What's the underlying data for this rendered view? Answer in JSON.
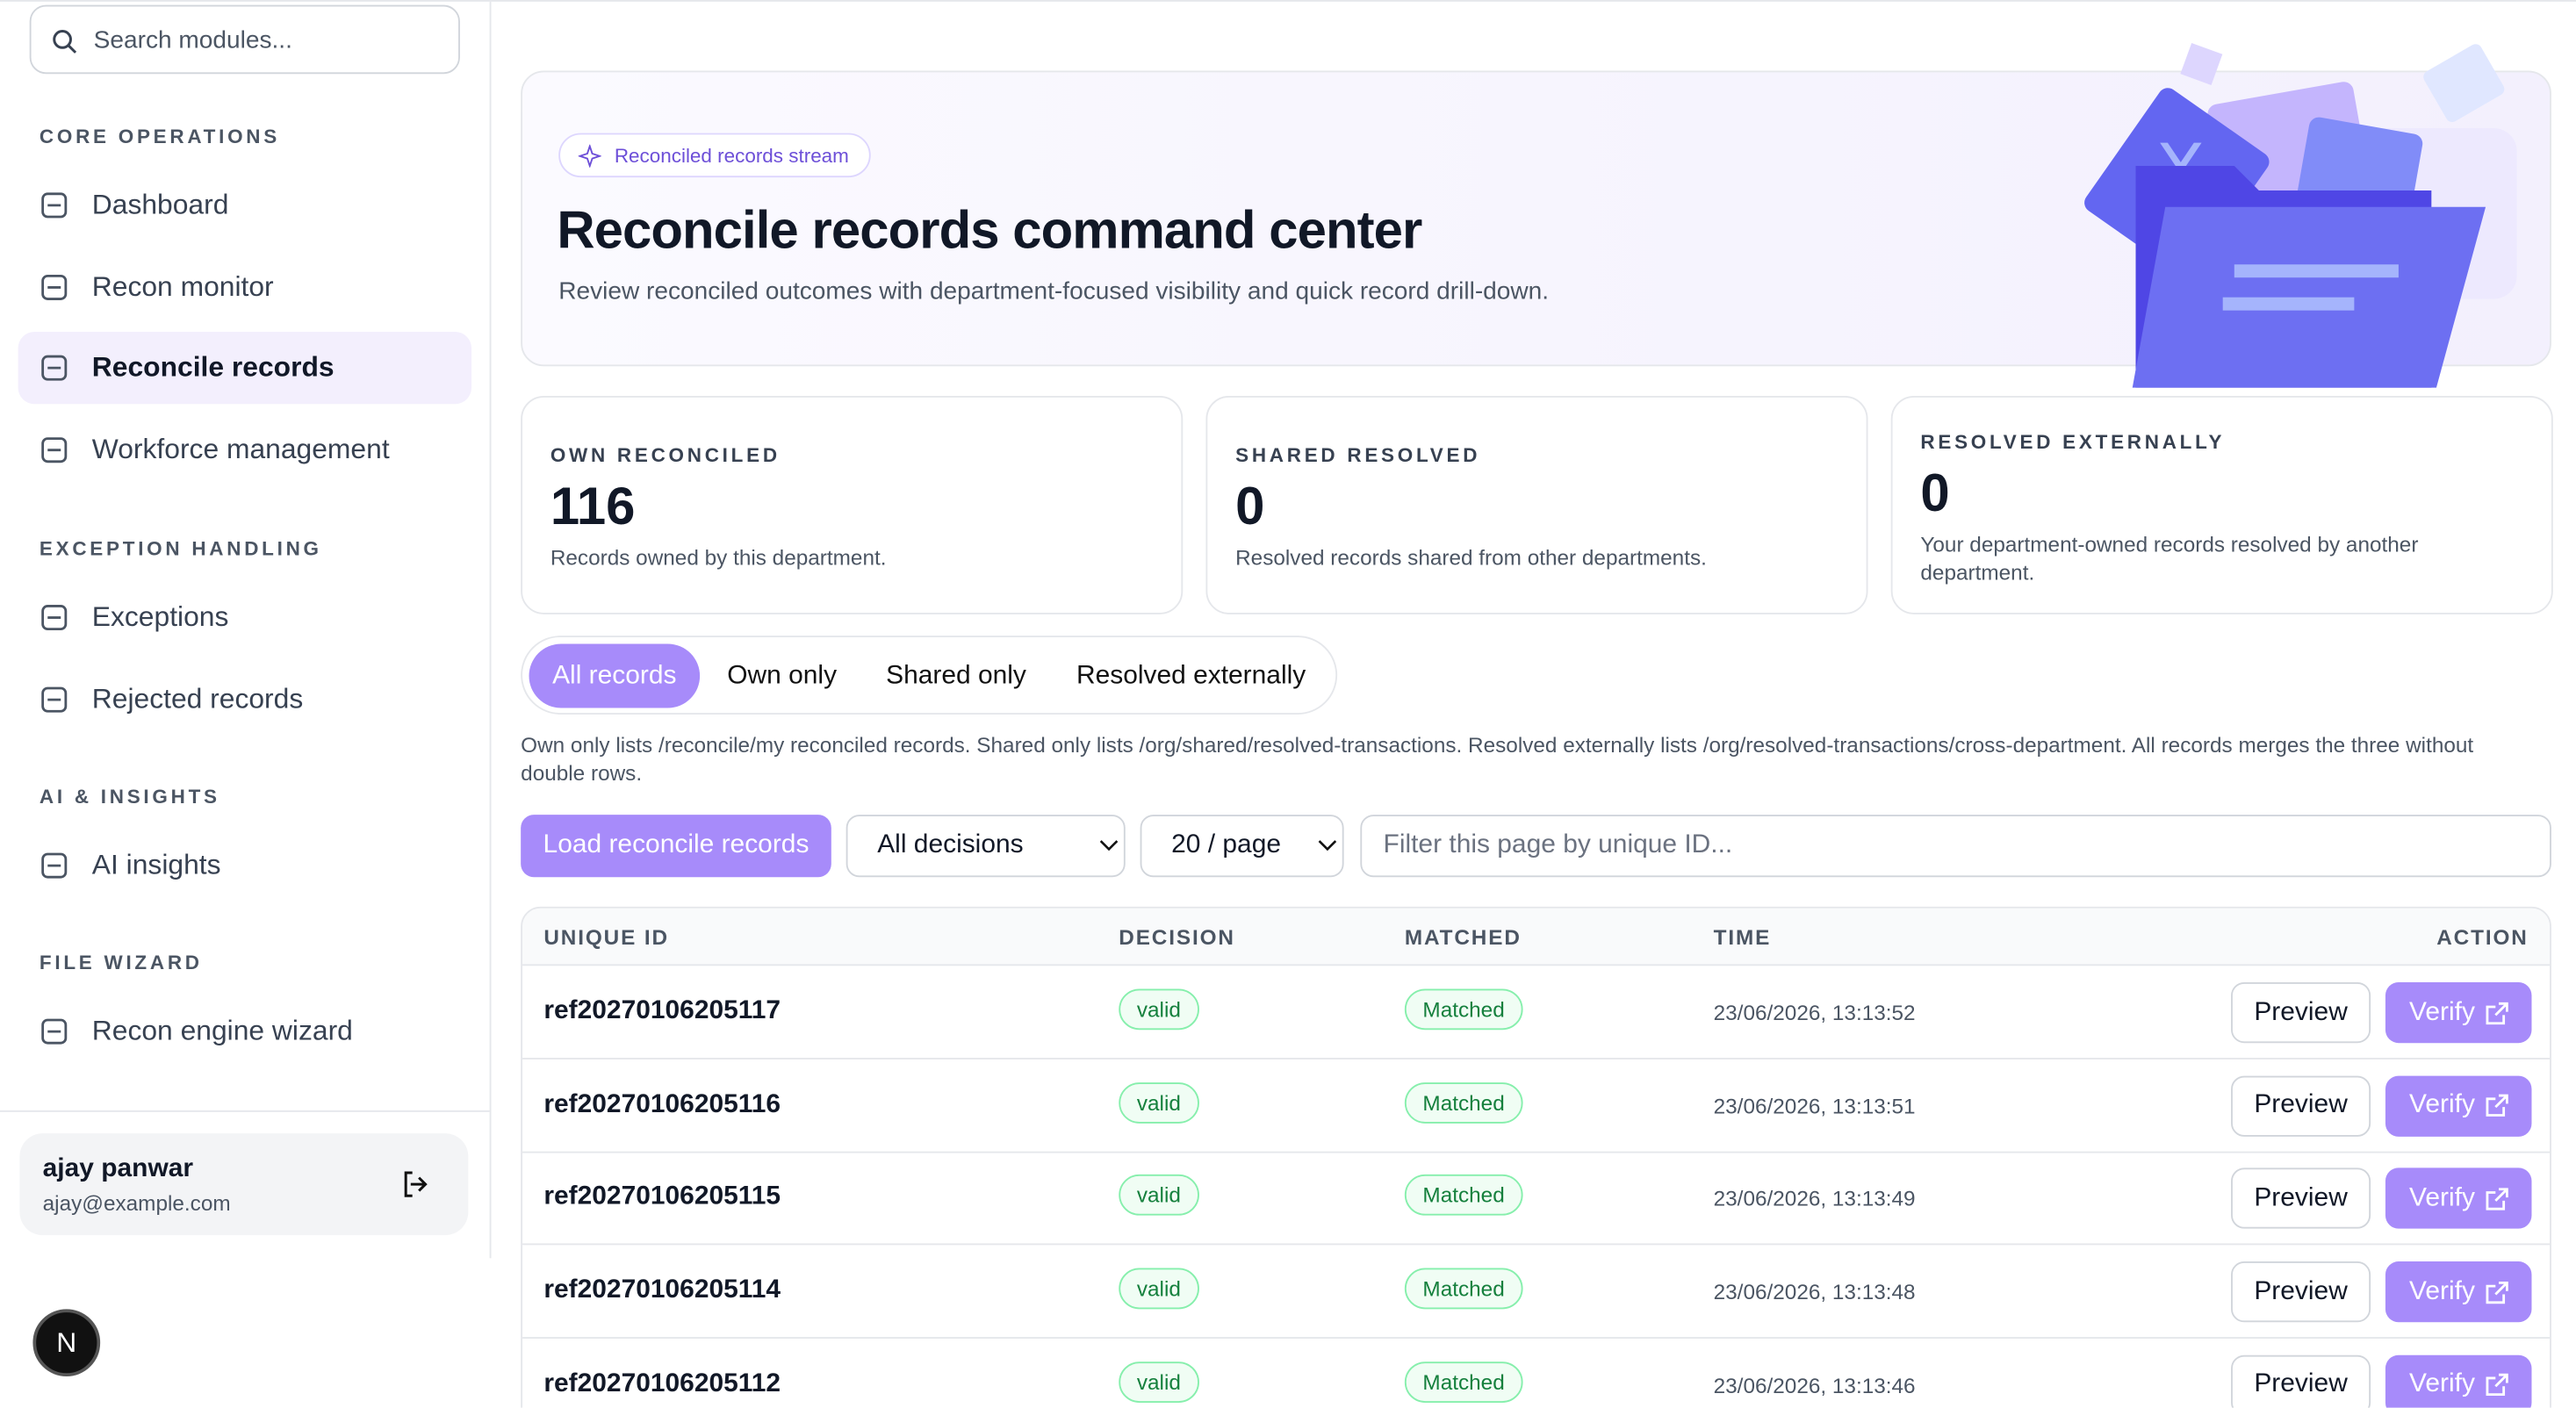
{
  "sidebar": {
    "search_placeholder": "Search modules...",
    "sections": [
      {
        "title": "CORE OPERATIONS",
        "items": [
          "Dashboard",
          "Recon monitor",
          "Reconcile records",
          "Workforce management"
        ]
      },
      {
        "title": "EXCEPTION HANDLING",
        "items": [
          "Exceptions",
          "Rejected records"
        ]
      },
      {
        "title": "AI & INSIGHTS",
        "items": [
          "AI insights"
        ]
      },
      {
        "title": "FILE WIZARD",
        "items": [
          "Recon engine wizard"
        ]
      }
    ],
    "user": {
      "name": "ajay panwar",
      "email": "ajay@example.com"
    },
    "avatar": "N"
  },
  "hero": {
    "badge": "Reconciled records stream",
    "title": "Reconcile records command center",
    "subtitle": "Review reconciled outcomes with department-focused visibility and quick record drill-down."
  },
  "stats": [
    {
      "label": "OWN RECONCILED",
      "value": 116,
      "description": "Records owned by this department."
    },
    {
      "label": "SHARED RESOLVED",
      "value": 0,
      "description": "Resolved records shared from other departments."
    },
    {
      "label": "RESOLVED EXTERNALLY",
      "value": 0,
      "description": "Your department-owned records resolved by another department."
    }
  ],
  "tabs": [
    "All records",
    "Own only",
    "Shared only",
    "Resolved externally"
  ],
  "note": "Own only lists /reconcile/my reconciled records. Shared only lists /org/shared/resolved-transactions. Resolved externally lists /org/resolved-transactions/cross-department. All records merges the three without double rows.",
  "controls": {
    "load_button": "Load reconcile records",
    "decision_select": "All decisions",
    "page_size_select": "20 / page",
    "filter_placeholder": "Filter this page by unique ID..."
  },
  "table": {
    "columns": [
      "UNIQUE ID",
      "DECISION",
      "MATCHED",
      "TIME",
      "ACTION"
    ],
    "row_actions": [
      "Preview",
      "Verify"
    ],
    "rows": [
      [
        "ref20270106205117",
        "valid",
        "Matched",
        "23/06/2026, 13:13:52"
      ],
      [
        "ref20270106205116",
        "valid",
        "Matched",
        "23/06/2026, 13:13:51"
      ],
      [
        "ref20270106205115",
        "valid",
        "Matched",
        "23/06/2026, 13:13:49"
      ],
      [
        "ref20270106205114",
        "valid",
        "Matched",
        "23/06/2026, 13:13:48"
      ],
      [
        "ref20270106205112",
        "valid",
        "Matched",
        "23/06/2026, 13:13:46"
      ]
    ]
  }
}
